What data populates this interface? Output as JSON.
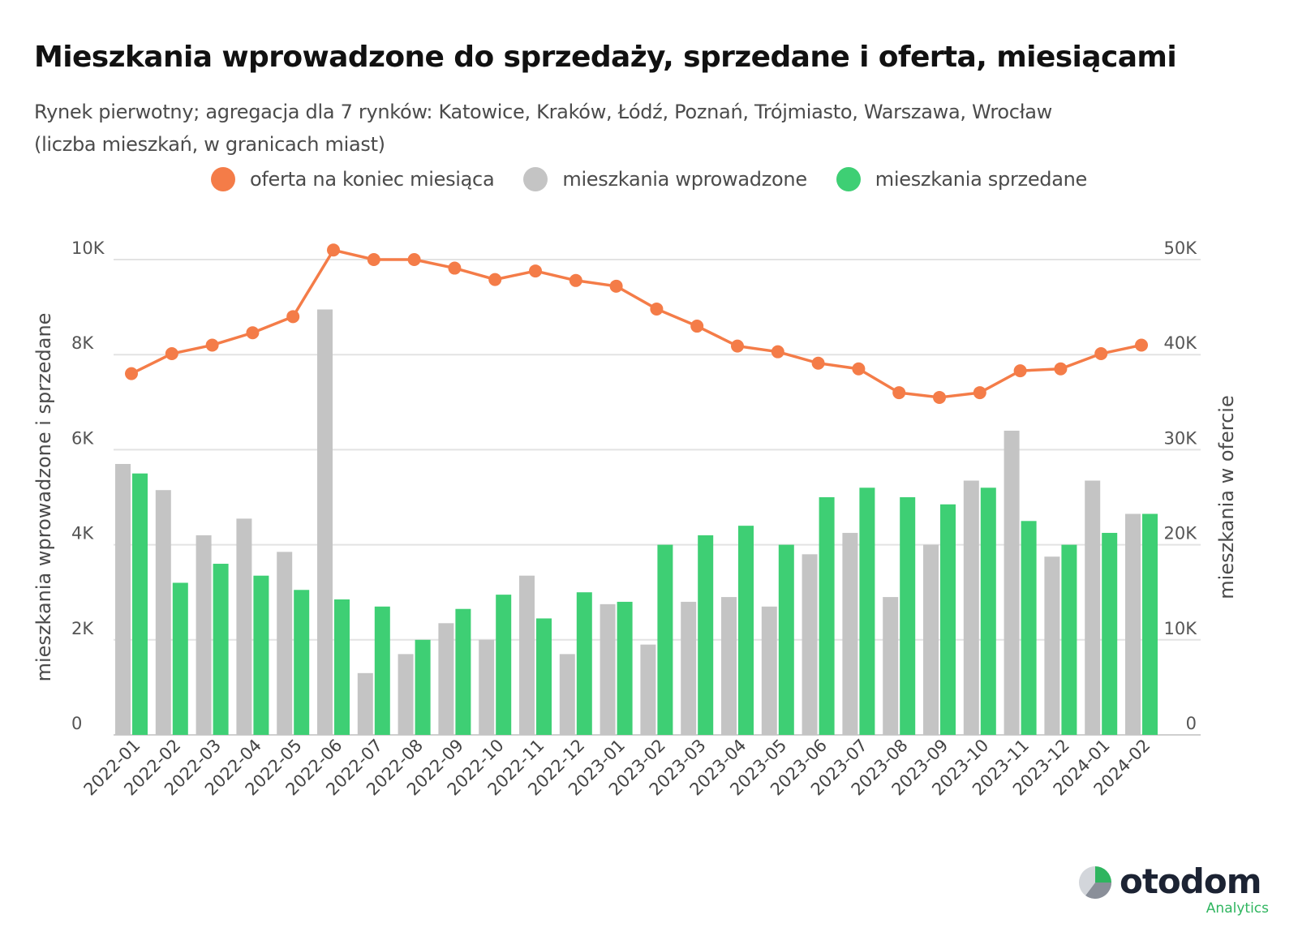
{
  "title": "Mieszkania wprowadzone do sprzedaży, sprzedane i oferta, miesiącami",
  "subtitle_line1": "Rynek pierwotny; agregacja dla 7 rynków: Katowice, Kraków, Łódź, Poznań, Trójmiasto, Warszawa, Wrocław",
  "subtitle_line2": "(liczba mieszkań, w granicach miast)",
  "brand": {
    "name": "otodom",
    "sub": "Analytics"
  },
  "colors": {
    "offer": "#f47c48",
    "introduced": "#c4c4c4",
    "sold": "#3ecf74",
    "grid": "#e3e3e3"
  },
  "chart_data": {
    "type": "bar",
    "legend_position": "top",
    "grid": true,
    "ylabel": "mieszkania wprowadzone i sprzedane",
    "y2label": "mieszkania w ofercie",
    "ylim": [
      0,
      10000
    ],
    "y2lim": [
      0,
      50000
    ],
    "y_ticks": [
      "0",
      "2K",
      "4K",
      "6K",
      "8K",
      "10K"
    ],
    "y2_ticks": [
      "0",
      "10K",
      "20K",
      "30K",
      "40K",
      "50K"
    ],
    "categories": [
      "2022-01",
      "2022-02",
      "2022-03",
      "2022-04",
      "2022-05",
      "2022-06",
      "2022-07",
      "2022-08",
      "2022-09",
      "2022-10",
      "2022-11",
      "2022-12",
      "2023-01",
      "2023-02",
      "2023-03",
      "2023-04",
      "2023-05",
      "2023-06",
      "2023-07",
      "2023-08",
      "2023-09",
      "2023-10",
      "2023-11",
      "2023-12",
      "2024-01",
      "2024-02"
    ],
    "series": [
      {
        "name": "oferta na koniec miesiąca",
        "type": "line",
        "axis": "right",
        "values": [
          38000,
          40100,
          41000,
          42300,
          44000,
          51000,
          50000,
          50000,
          49100,
          47900,
          48800,
          47800,
          47200,
          44800,
          43000,
          40900,
          40300,
          39100,
          38500,
          36000,
          35500,
          36000,
          38300,
          38500,
          40100,
          41000
        ]
      },
      {
        "name": "mieszkania wprowadzone",
        "type": "bar",
        "axis": "left",
        "values": [
          5700,
          5150,
          4200,
          4550,
          3850,
          8950,
          1300,
          1700,
          2350,
          2000,
          3350,
          1700,
          2750,
          1900,
          2800,
          2900,
          2700,
          3800,
          4250,
          2900,
          4000,
          5350,
          6400,
          3750,
          5350,
          4650
        ]
      },
      {
        "name": "mieszkania sprzedane",
        "type": "bar",
        "axis": "left",
        "values": [
          5500,
          3200,
          3600,
          3350,
          3050,
          2850,
          2700,
          2000,
          2650,
          2950,
          2450,
          3000,
          2800,
          4000,
          4200,
          4400,
          4000,
          5000,
          5200,
          5000,
          4850,
          5200,
          4500,
          4000,
          4250,
          4650
        ]
      }
    ]
  }
}
